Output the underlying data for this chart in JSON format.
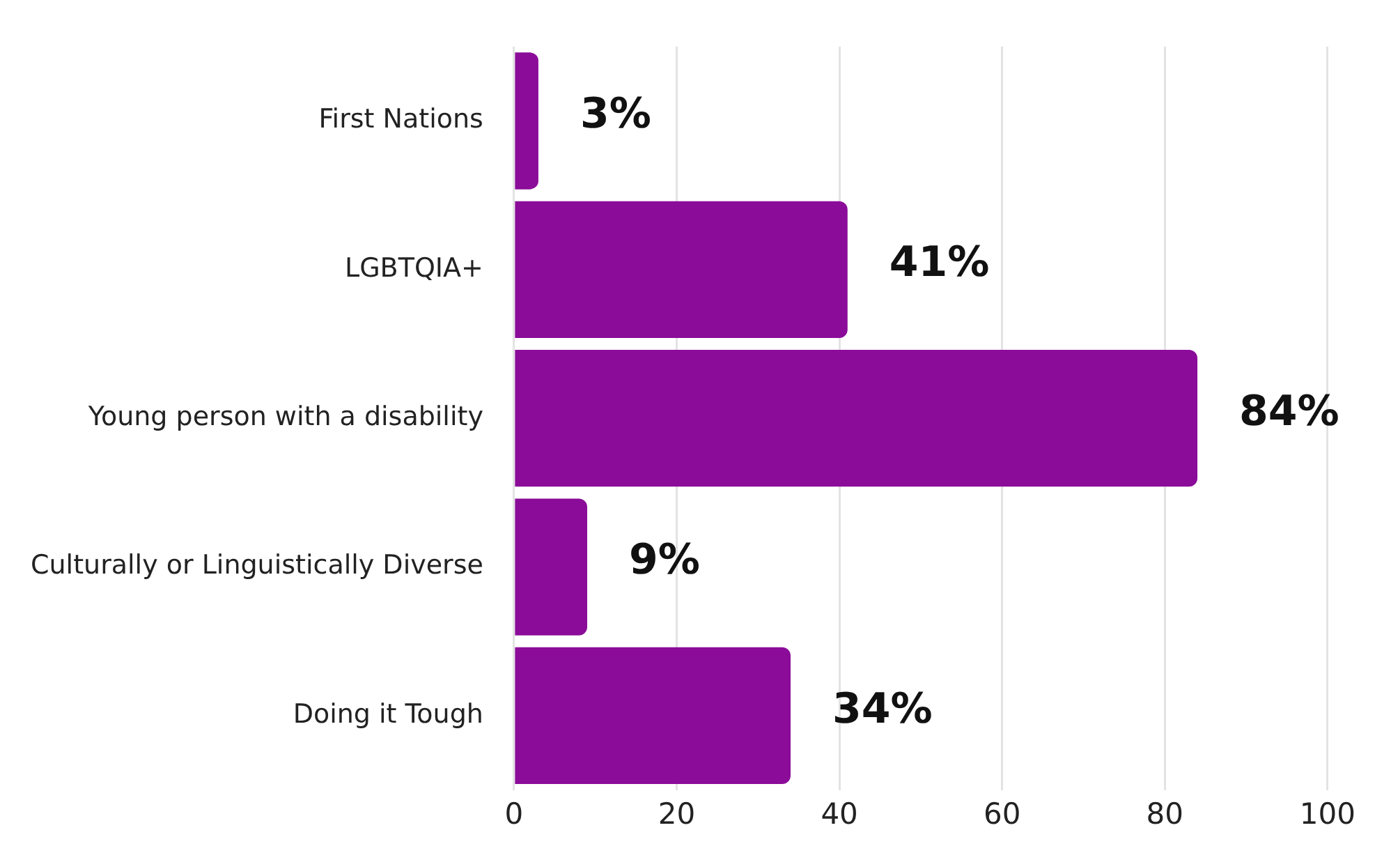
{
  "chart_data": {
    "type": "bar",
    "orientation": "horizontal",
    "categories": [
      "First Nations",
      "LGBTQIA+",
      "Young person with a disability",
      "Culturally or Linguistically Diverse",
      "Doing it Tough"
    ],
    "values": [
      3,
      41,
      84,
      9,
      34
    ],
    "value_labels": [
      "3%",
      "41%",
      "84%",
      "9%",
      "34%"
    ],
    "color": "#8b0c99",
    "xlim": [
      0,
      100
    ],
    "xticks": [
      0,
      20,
      40,
      60,
      80,
      100
    ],
    "grid": "x",
    "legend": false
  }
}
